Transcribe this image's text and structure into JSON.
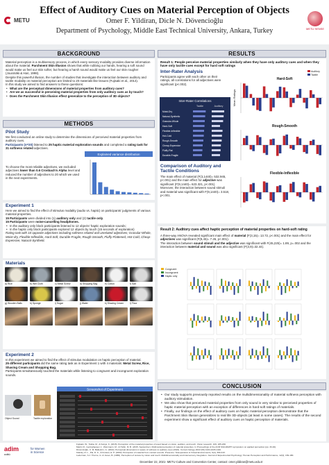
{
  "header": {
    "title": "Effect of Auditory Cues on Material Perception of Objects",
    "authors": "Omer F. Yildiran, Dicle N. Dövencioğlu",
    "affiliation": "Department of Psychology, Middle East Technical University, Ankara, Turkey",
    "logo_left": "METU",
    "logo_right": "METU SENSE"
  },
  "background": {
    "heading": "BACKGROUND",
    "p1_a": "Material perception is a multisensory process, in which every sensory modality provides diverse information about the material.",
    "p1_b": "Parchment Skin Illusion",
    "p1_c": "shows that while rubbing our hands, hearing a soft sound would make us feel our skin softer, but hearing a harsh sound would make us feel our skin rougher (Jousmäki & Hari, 1998).",
    "p2": "Despite this powerful illusion, the number of studies that investigate the interaction between auditory and tactile modality on material perception are limited to 20 materials like tissues (Fujisaki et al., 2014).",
    "p3": "In this study we aimed to find answers to these questions:",
    "q1": "What are the perceptual dimensions of material properties from auditory cues?",
    "q2": "Are we as successful in perceiving material properties from only auditory cues as by touch?",
    "q3": "Does the Parchment Skin Illusion effect generalize to the perception of 3D objects?"
  },
  "methods": {
    "heading": "METHODS",
    "pilot_h": "Pilot Study",
    "pilot_p1": "We first conducted an online study to determine the dimensions of perceived material properties from auditory cues.",
    "pilot_p2_a": "Participants (n=20)",
    "pilot_p2_b": "listened to",
    "pilot_p2_c": "25 haptic material exploration sounds",
    "pilot_p2_d": "and completed a",
    "pilot_p2_e": "rating task for 31 softness related",
    "pilot_p2_f": "adjectives.",
    "pilot_p3": "To choose the most reliable adjectives, we excluded adjectives",
    "pilot_p3_b": "lower than 0.6 Cronbach's Alpha",
    "pilot_p3_c": "level and reduced the number of adjectives to 20 which we used in the next experiments.",
    "variance_title": "Explained variance distribution",
    "variance_values": [
      8.2,
      3.1,
      1.9,
      1.2,
      0.8,
      0.6,
      0.5,
      0.4,
      0.3,
      0.2
    ],
    "exp1_h": "Experiment 1",
    "exp1_p1": "Here we aimed to find the effect of stimulus modality (audio vs. haptic) on participants' judgments of various material properties.",
    "exp1_p2_a": "15 Participants",
    "exp1_p2_b": "were divided into (1)",
    "exp1_p2_c": "auditory only",
    "exp1_p2_d": "and (2)",
    "exp1_p2_e": "tactile only",
    "exp1_p2_f": ".",
    "exp1_p3_a": "15 Participants",
    "exp1_p3_b": "were",
    "exp1_p3_c": "noise-cancelling headphones.",
    "exp1_b1": "In the auditory only block participants listened to 12 objects' haptic exploration sounds;",
    "exp1_b2": "In the haptic only block participants explored 12 objects by touch (15 seconds of exploration)",
    "exp1_p4": "Rating task with 10 opposite adjectives including softness related and unrelated adjectives; Granular-Whole, Moist-dry, Flexible-Inflexible, Hard-Soft, Durable-Fragile, Rough-Smooth, Fluffy-Flattened, Hot-Cold, Cheap-Expensive, Natural-Synthetic",
    "materials_h": "Materials",
    "materials": [
      "a) Rice",
      "b) Wet Cloth",
      "c) Metal Screw",
      "d) Shopping Bag",
      "e) Cotton",
      "f) Salt",
      "g) Wooden Balls",
      "h) Sponge",
      "i) Sugar",
      "j) Water",
      "k) Shaving Cream",
      "l) Flour"
    ],
    "exp2_h": "Experiment 2",
    "exp2_p1": "In this experiment we aimed to find the effect of stimulus modulation on haptic perception of material.",
    "exp2_p2_a": "25 different participants",
    "exp2_p2_b": "did the same rating task as in Experiment 1 with 4 materials:",
    "exp2_p2_c": "Metal Screw, Rice, Shaving Cream and Shopping Bag.",
    "exp2_p3": "Participants simultaneously touched the materials while listening to congruent and incongruent exploration sounds.",
    "screenshot_title": "Screenshot of Experiment",
    "object_label": "Object Sound",
    "tactile_label": "Tactile exploration"
  },
  "results": {
    "heading": "RESULTS",
    "r1_title": "Result 1: People perceive material properties similarly when they have only auditory cues and when they have only tactile cues except for hard soft ratings",
    "irc_h": "Inter-Rater Analysis",
    "irc_p": "Participants agree with each other on their ratings, all correlations for all adjectives were significant (p<.002).",
    "irc_table_title": "Inter-Rater Correlations",
    "irc_cols": [
      "Tactile",
      "Auditory"
    ],
    "irc_rows": [
      "Moist-Dry",
      "Natural-Synthetic",
      "Granular-Whole",
      "Hard-Soft",
      "Flexible-Inflexible",
      "Hot-Cold",
      "Rough-Smooth",
      "Cheap-Expensive",
      "Fluffy-Flat",
      "Durable-Fragile"
    ],
    "irc_tactile": [
      0.92,
      0.88,
      0.85,
      0.83,
      0.8,
      0.78,
      0.75,
      0.7,
      0.68,
      0.65
    ],
    "irc_auditory": [
      0.9,
      0.86,
      0.82,
      0.6,
      0.78,
      0.74,
      0.72,
      0.66,
      0.64,
      0.6
    ],
    "comp_h": "Comparison of Auditory and Tactile Conditions",
    "comp_p1_a": "The main effect of material (F(3,1440)= 532.945, p<.001) and the main effect for",
    "comp_p1_b": "adjective",
    "comp_p1_c": "was significant (F(9,1440)= 623.321, p<.001).",
    "comp_p2": "Moreover, the interaction between sound stimuli and material was significant with F(9,1440)= 3.518, p<.001.",
    "chart1_ylabel": "Mean Ratings",
    "legend_a": "Auditory",
    "legend_t": "Tactile",
    "r2_title": "Result 2: Auditory cues affect haptic perception of material properties on hard-soft rating",
    "r2_p1_a": "A three-way ANOVA revealed significant main effect of",
    "r2_p1_b": "material",
    "r2_p1_c": "(F(3,15)= 13.72, p<.001) and the main effect for",
    "r2_p1_d": "adjectives",
    "r2_p1_e": "was significant (F(9,45)= 7.26, p<.001).",
    "r2_p2_a": "The interaction between",
    "r2_p2_b": "sound stimuli and the adjective",
    "r2_p2_c": "was significant with F(45,225)= 1.89, p=.002 and the interaction between",
    "r2_p2_d": "material and sound",
    "r2_p2_e": "was also significant (F(3,9)=32.44).",
    "legend2": [
      "Congruent",
      "Incongruent",
      "Haptic only"
    ]
  },
  "conclusion": {
    "heading": "CONCLUSION",
    "c1": "Our study supports previously reported results on the multidimensionality of material softness perception with auditory stimulation.",
    "c2": "We also show that perceived material properties from only sound is very similar to perceived properties of haptic material perception with an exception of differences in hard-soft ratings of materials.",
    "c3": "Finally, our findings on the effect of auditory cues on haptic material perception demonstrate that the Parchment Skin Illusion generalizes to real life 3D-objects (at least in some cases). The results of the second experiment show a significant effect of auditory cues on haptic perception of materials."
  },
  "footer": {
    "refs": [
      "Fujisaki, W., Tokita, M., & Kariya, K. (2015). Perception of the material properties of wood based on vision, audition, and touch. Vision research, 109, 185-200.",
      "Martín R., Iseringhausen J., Weinmann, M., & Hullin, M. B. (2015, September). Multimodal perception of material properties. In Proceedings of the ACM SIGGRAPH symposium on applied perception (pp. 33-40).",
      "Dövencioğlu, Ü. M. Ballestrin, G. (2022). Perceptual dimensions in space of softness to auditory cues (2022). Current biology 2022 (09) 1024-1026-1110.",
      "Klatzky, R. L., Pai, D. K., & Krotkov, E. P. (2000). Perception of material from contact sounds. Presence: Teleoperators & Virtual Environments, 9(4), 399-410.",
      "Lederman, S.J. Thorne, G. & Jones, B. (1986). Perception of texture by vision and touch: Multidimensionality and intersensory integration. Journal of Experimental Psychology: Human Perception and Performance, 12(2), 169-180."
    ],
    "date_line": "December 22, 2021- METU Culture and Convention Center, contact: omer.yildiran@metu.edu.tr",
    "adim": "adim",
    "adim_sub": "odtü",
    "wis_1": "for Women",
    "wis_2": "in Science"
  }
}
